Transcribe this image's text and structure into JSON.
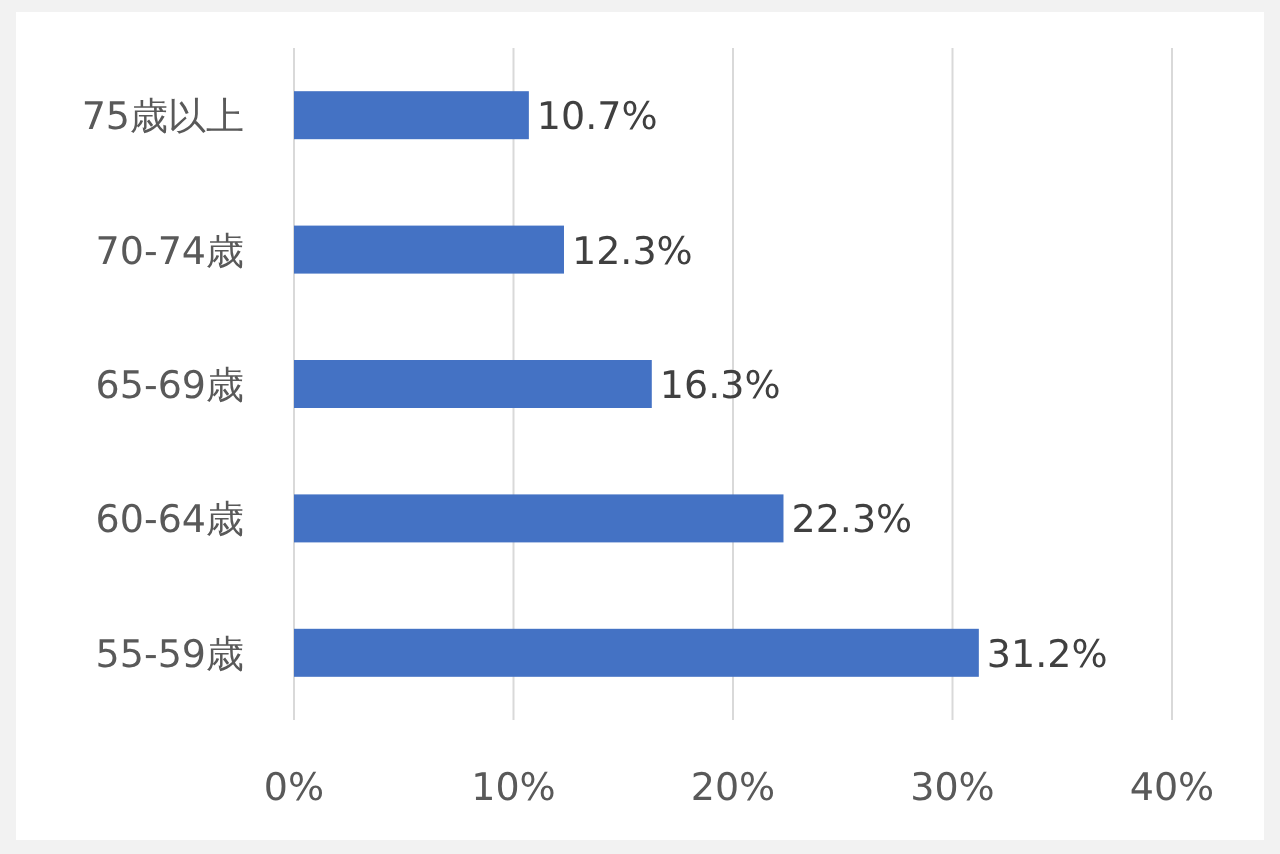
{
  "chart_data": {
    "type": "bar",
    "orientation": "horizontal",
    "categories": [
      "75歳以上",
      "70-74歳",
      "65-69歳",
      "60-64歳",
      "55-59歳"
    ],
    "values": [
      10.7,
      12.3,
      16.3,
      22.3,
      31.2
    ],
    "value_labels": [
      "10.7%",
      "12.3%",
      "16.3%",
      "22.3%",
      "31.2%"
    ],
    "color": "#4472c4",
    "xlim": [
      0,
      40
    ],
    "xticks": [
      {
        "value": 0,
        "label": "0%"
      },
      {
        "value": 10,
        "label": "10%"
      },
      {
        "value": 20,
        "label": "20%"
      },
      {
        "value": 30,
        "label": "30%"
      },
      {
        "value": 40,
        "label": "40%"
      }
    ],
    "grid": "x"
  }
}
